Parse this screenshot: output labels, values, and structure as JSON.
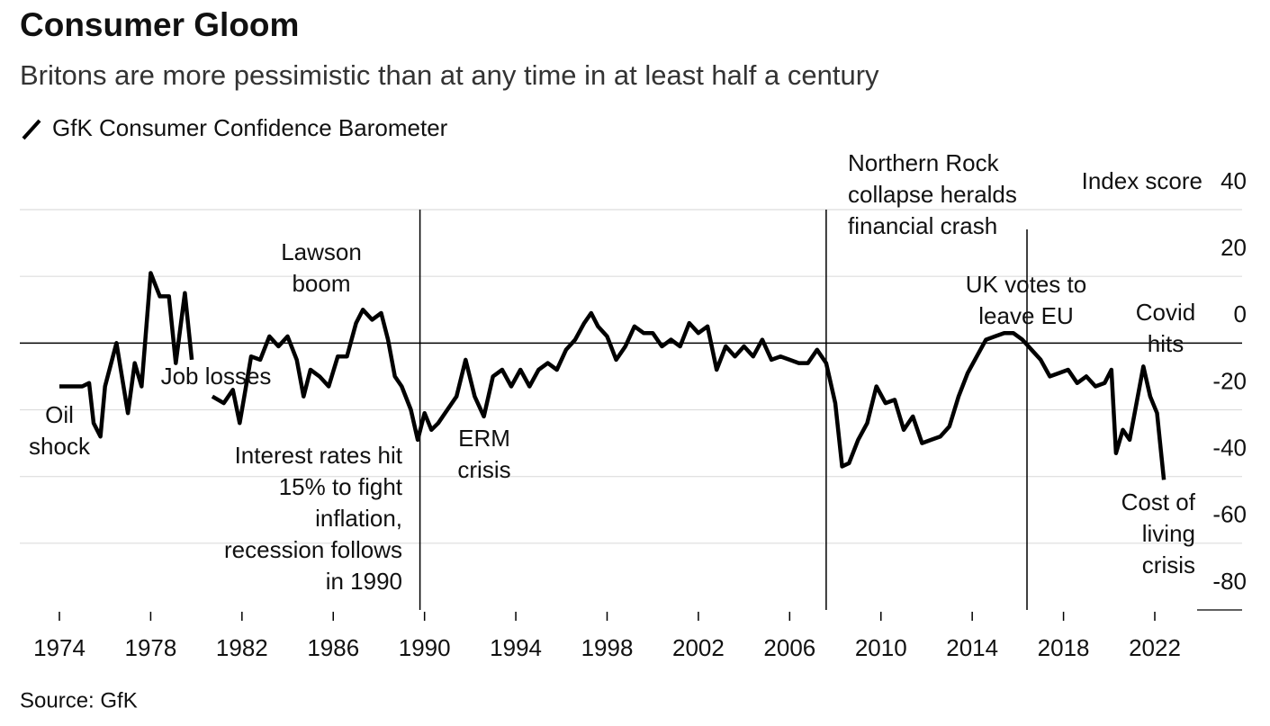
{
  "chart_data": {
    "type": "line",
    "title": "Consumer Gloom",
    "subtitle": "Britons are more pessimistic than at any time in at least half a century",
    "source": "Source: GfK",
    "y_label": "Index score",
    "series": [
      {
        "name": "GfK Consumer Confidence Barometer",
        "color": "#000000",
        "x": [
          1974.0,
          1975.0,
          1975.3,
          1975.5,
          1975.8,
          1976.0,
          1976.5,
          1977.0,
          1977.3,
          1977.6,
          1978.0,
          1978.4,
          1978.8,
          1979.1,
          1979.5,
          1979.8,
          1980.2,
          1980.7,
          1981.2,
          1981.6,
          1981.9,
          1982.1,
          1982.4,
          1982.8,
          1983.2,
          1983.6,
          1984.0,
          1984.4,
          1984.7,
          1985.0,
          1985.4,
          1985.8,
          1986.2,
          1986.6,
          1987.0,
          1987.3,
          1987.7,
          1988.1,
          1988.4,
          1988.7,
          1989.0,
          1989.4,
          1989.7,
          1990.0,
          1990.3,
          1990.6,
          1991.0,
          1991.4,
          1991.8,
          1992.2,
          1992.6,
          1993.0,
          1993.4,
          1993.8,
          1994.2,
          1994.6,
          1995.0,
          1995.4,
          1995.8,
          1996.2,
          1996.6,
          1997.0,
          1997.3,
          1997.6,
          1998.0,
          1998.4,
          1998.8,
          1999.2,
          1999.6,
          2000.0,
          2000.4,
          2000.8,
          2001.2,
          2001.6,
          2002.0,
          2002.4,
          2002.8,
          2003.2,
          2003.6,
          2004.0,
          2004.4,
          2004.8,
          2005.2,
          2005.6,
          2006.0,
          2006.4,
          2006.8,
          2007.2,
          2007.6,
          2008.0,
          2008.3,
          2008.6,
          2009.0,
          2009.4,
          2009.8,
          2010.2,
          2010.6,
          2011.0,
          2011.4,
          2011.8,
          2012.2,
          2012.6,
          2013.0,
          2013.4,
          2013.8,
          2014.2,
          2014.6,
          2015.0,
          2015.4,
          2015.8,
          2016.2,
          2016.6,
          2017.0,
          2017.4,
          2017.8,
          2018.2,
          2018.6,
          2019.0,
          2019.4,
          2019.8,
          2020.1,
          2020.3,
          2020.6,
          2020.9,
          2021.2,
          2021.5,
          2021.8,
          2022.1,
          2022.4
        ],
        "values": [
          -13,
          -13,
          -12,
          -24,
          -28,
          -13,
          0,
          -21,
          -6,
          -13,
          21,
          14,
          14,
          -6,
          15,
          -5,
          null,
          -16,
          -18,
          -14,
          -24,
          -16,
          -4,
          -5,
          2,
          -1,
          2,
          -5,
          -16,
          -8,
          -10,
          -13,
          -4,
          -4,
          6,
          10,
          7,
          9,
          1,
          -10,
          -13,
          -20,
          -29,
          -21,
          -26,
          -24,
          -20,
          -16,
          -5,
          -16,
          -22,
          -10,
          -8,
          -13,
          -8,
          -13,
          -8,
          -6,
          -8,
          -2,
          1,
          6,
          9,
          5,
          2,
          -5,
          -1,
          5,
          3,
          3,
          -1,
          1,
          -1,
          6,
          3,
          5,
          -8,
          -1,
          -4,
          -1,
          -4,
          1,
          -5,
          -4,
          -5,
          -6,
          -6,
          -2,
          -6,
          -18,
          -37,
          -36,
          -29,
          -24,
          -13,
          -18,
          -17,
          -26,
          -22,
          -30,
          -29,
          -28,
          -25,
          -16,
          -9,
          -4,
          1,
          2,
          3,
          3,
          1,
          -2,
          -5,
          -10,
          -9,
          -8,
          -12,
          -10,
          -13,
          -12,
          -8,
          -33,
          -26,
          -29,
          -18,
          -7,
          -16,
          -21,
          -41
        ]
      }
    ],
    "xlim": [
      1972.5,
      2025.5
    ],
    "xticks": [
      1974,
      1978,
      1982,
      1986,
      1990,
      1994,
      1998,
      2002,
      2006,
      2010,
      2014,
      2018,
      2022
    ],
    "ylim": [
      -80,
      40
    ],
    "yticks": [
      -80,
      -60,
      -40,
      -20,
      0,
      20,
      40
    ],
    "grid": true,
    "events": [
      {
        "x": 1989.8
      },
      {
        "x": 2007.6
      },
      {
        "x": 2016.4
      }
    ],
    "annotations": [
      {
        "lines": [
          "Oil",
          "shock"
        ]
      },
      {
        "lines": [
          "Job losses"
        ]
      },
      {
        "lines": [
          "Lawson",
          "boom"
        ]
      },
      {
        "lines": [
          "Interest rates hit",
          "15% to fight",
          "inflation,",
          "recession follows",
          "in 1990"
        ]
      },
      {
        "lines": [
          "ERM",
          "crisis"
        ]
      },
      {
        "lines": [
          "Northern Rock",
          "collapse heralds",
          "financial crash"
        ]
      },
      {
        "lines": [
          "UK votes to",
          "leave EU"
        ]
      },
      {
        "lines": [
          "Covid",
          "hits"
        ]
      },
      {
        "lines": [
          "Cost of",
          "living",
          "crisis"
        ]
      }
    ]
  }
}
